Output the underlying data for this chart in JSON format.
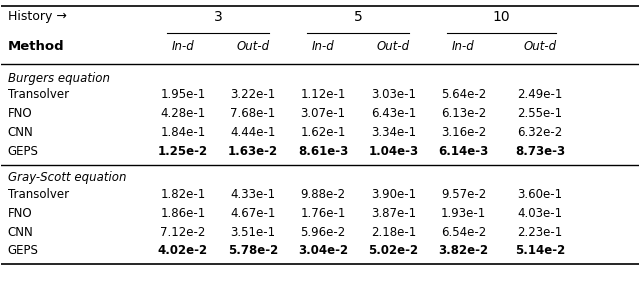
{
  "title_row": "History →",
  "history_values": [
    "3",
    "5",
    "10"
  ],
  "subheaders": [
    "In-d",
    "Out-d",
    "In-d",
    "Out-d",
    "In-d",
    "Out-d"
  ],
  "method_col_label": "Method",
  "sections": [
    {
      "section_label": "Burgers equation",
      "rows": [
        {
          "method": "Transolver",
          "values": [
            "1.95e-1",
            "3.22e-1",
            "1.12e-1",
            "3.03e-1",
            "5.64e-2",
            "2.49e-1"
          ],
          "bold": [
            false,
            false,
            false,
            false,
            false,
            false
          ]
        },
        {
          "method": "FNO",
          "values": [
            "4.28e-1",
            "7.68e-1",
            "3.07e-1",
            "6.43e-1",
            "6.13e-2",
            "2.55e-1"
          ],
          "bold": [
            false,
            false,
            false,
            false,
            false,
            false
          ]
        },
        {
          "method": "CNN",
          "values": [
            "1.84e-1",
            "4.44e-1",
            "1.62e-1",
            "3.34e-1",
            "3.16e-2",
            "6.32e-2"
          ],
          "bold": [
            false,
            false,
            false,
            false,
            false,
            false
          ]
        },
        {
          "method": "GEPS",
          "values": [
            "1.25e-2",
            "1.63e-2",
            "8.61e-3",
            "1.04e-3",
            "6.14e-3",
            "8.73e-3"
          ],
          "bold": [
            true,
            true,
            true,
            true,
            true,
            true
          ]
        }
      ]
    },
    {
      "section_label": "Gray-Scott equation",
      "rows": [
        {
          "method": "Transolver",
          "values": [
            "1.82e-1",
            "4.33e-1",
            "9.88e-2",
            "3.90e-1",
            "9.57e-2",
            "3.60e-1"
          ],
          "bold": [
            false,
            false,
            false,
            false,
            false,
            false
          ]
        },
        {
          "method": "FNO",
          "values": [
            "1.86e-1",
            "4.67e-1",
            "1.76e-1",
            "3.87e-1",
            "1.93e-1",
            "4.03e-1"
          ],
          "bold": [
            false,
            false,
            false,
            false,
            false,
            false
          ]
        },
        {
          "method": "CNN",
          "values": [
            "7.12e-2",
            "3.51e-1",
            "5.96e-2",
            "2.18e-1",
            "6.54e-2",
            "2.23e-1"
          ],
          "bold": [
            false,
            false,
            false,
            false,
            false,
            false
          ]
        },
        {
          "method": "GEPS",
          "values": [
            "4.02e-2",
            "5.78e-2",
            "3.04e-2",
            "5.02e-2",
            "3.82e-2",
            "5.14e-2"
          ],
          "bold": [
            true,
            true,
            true,
            true,
            true,
            true
          ]
        }
      ]
    }
  ],
  "bg_color": "#ffffff",
  "text_color": "#000000",
  "line_color": "#000000",
  "font_size": 8.5,
  "header_font_size": 10.0,
  "section_font_size": 8.5
}
